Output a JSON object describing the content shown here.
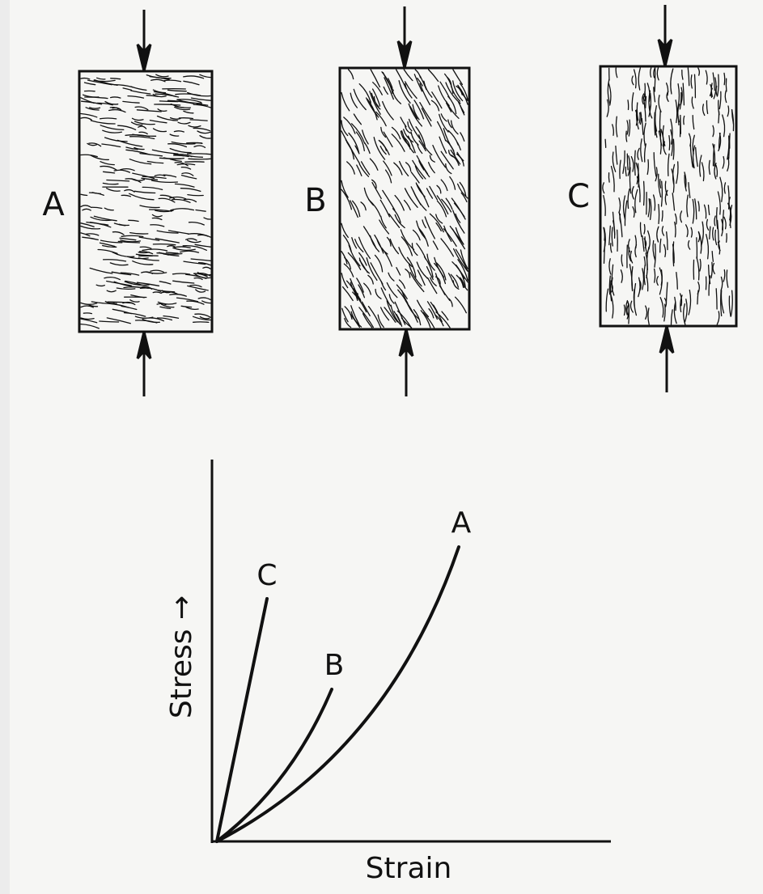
{
  "specimens": [
    {
      "label": "A"
    },
    {
      "label": "B"
    },
    {
      "label": "C"
    }
  ],
  "graph": {
    "y_axis_label": "Stress →",
    "x_axis_label": "Strain",
    "curves": [
      {
        "label": "C"
      },
      {
        "label": "B"
      },
      {
        "label": "A"
      }
    ]
  }
}
